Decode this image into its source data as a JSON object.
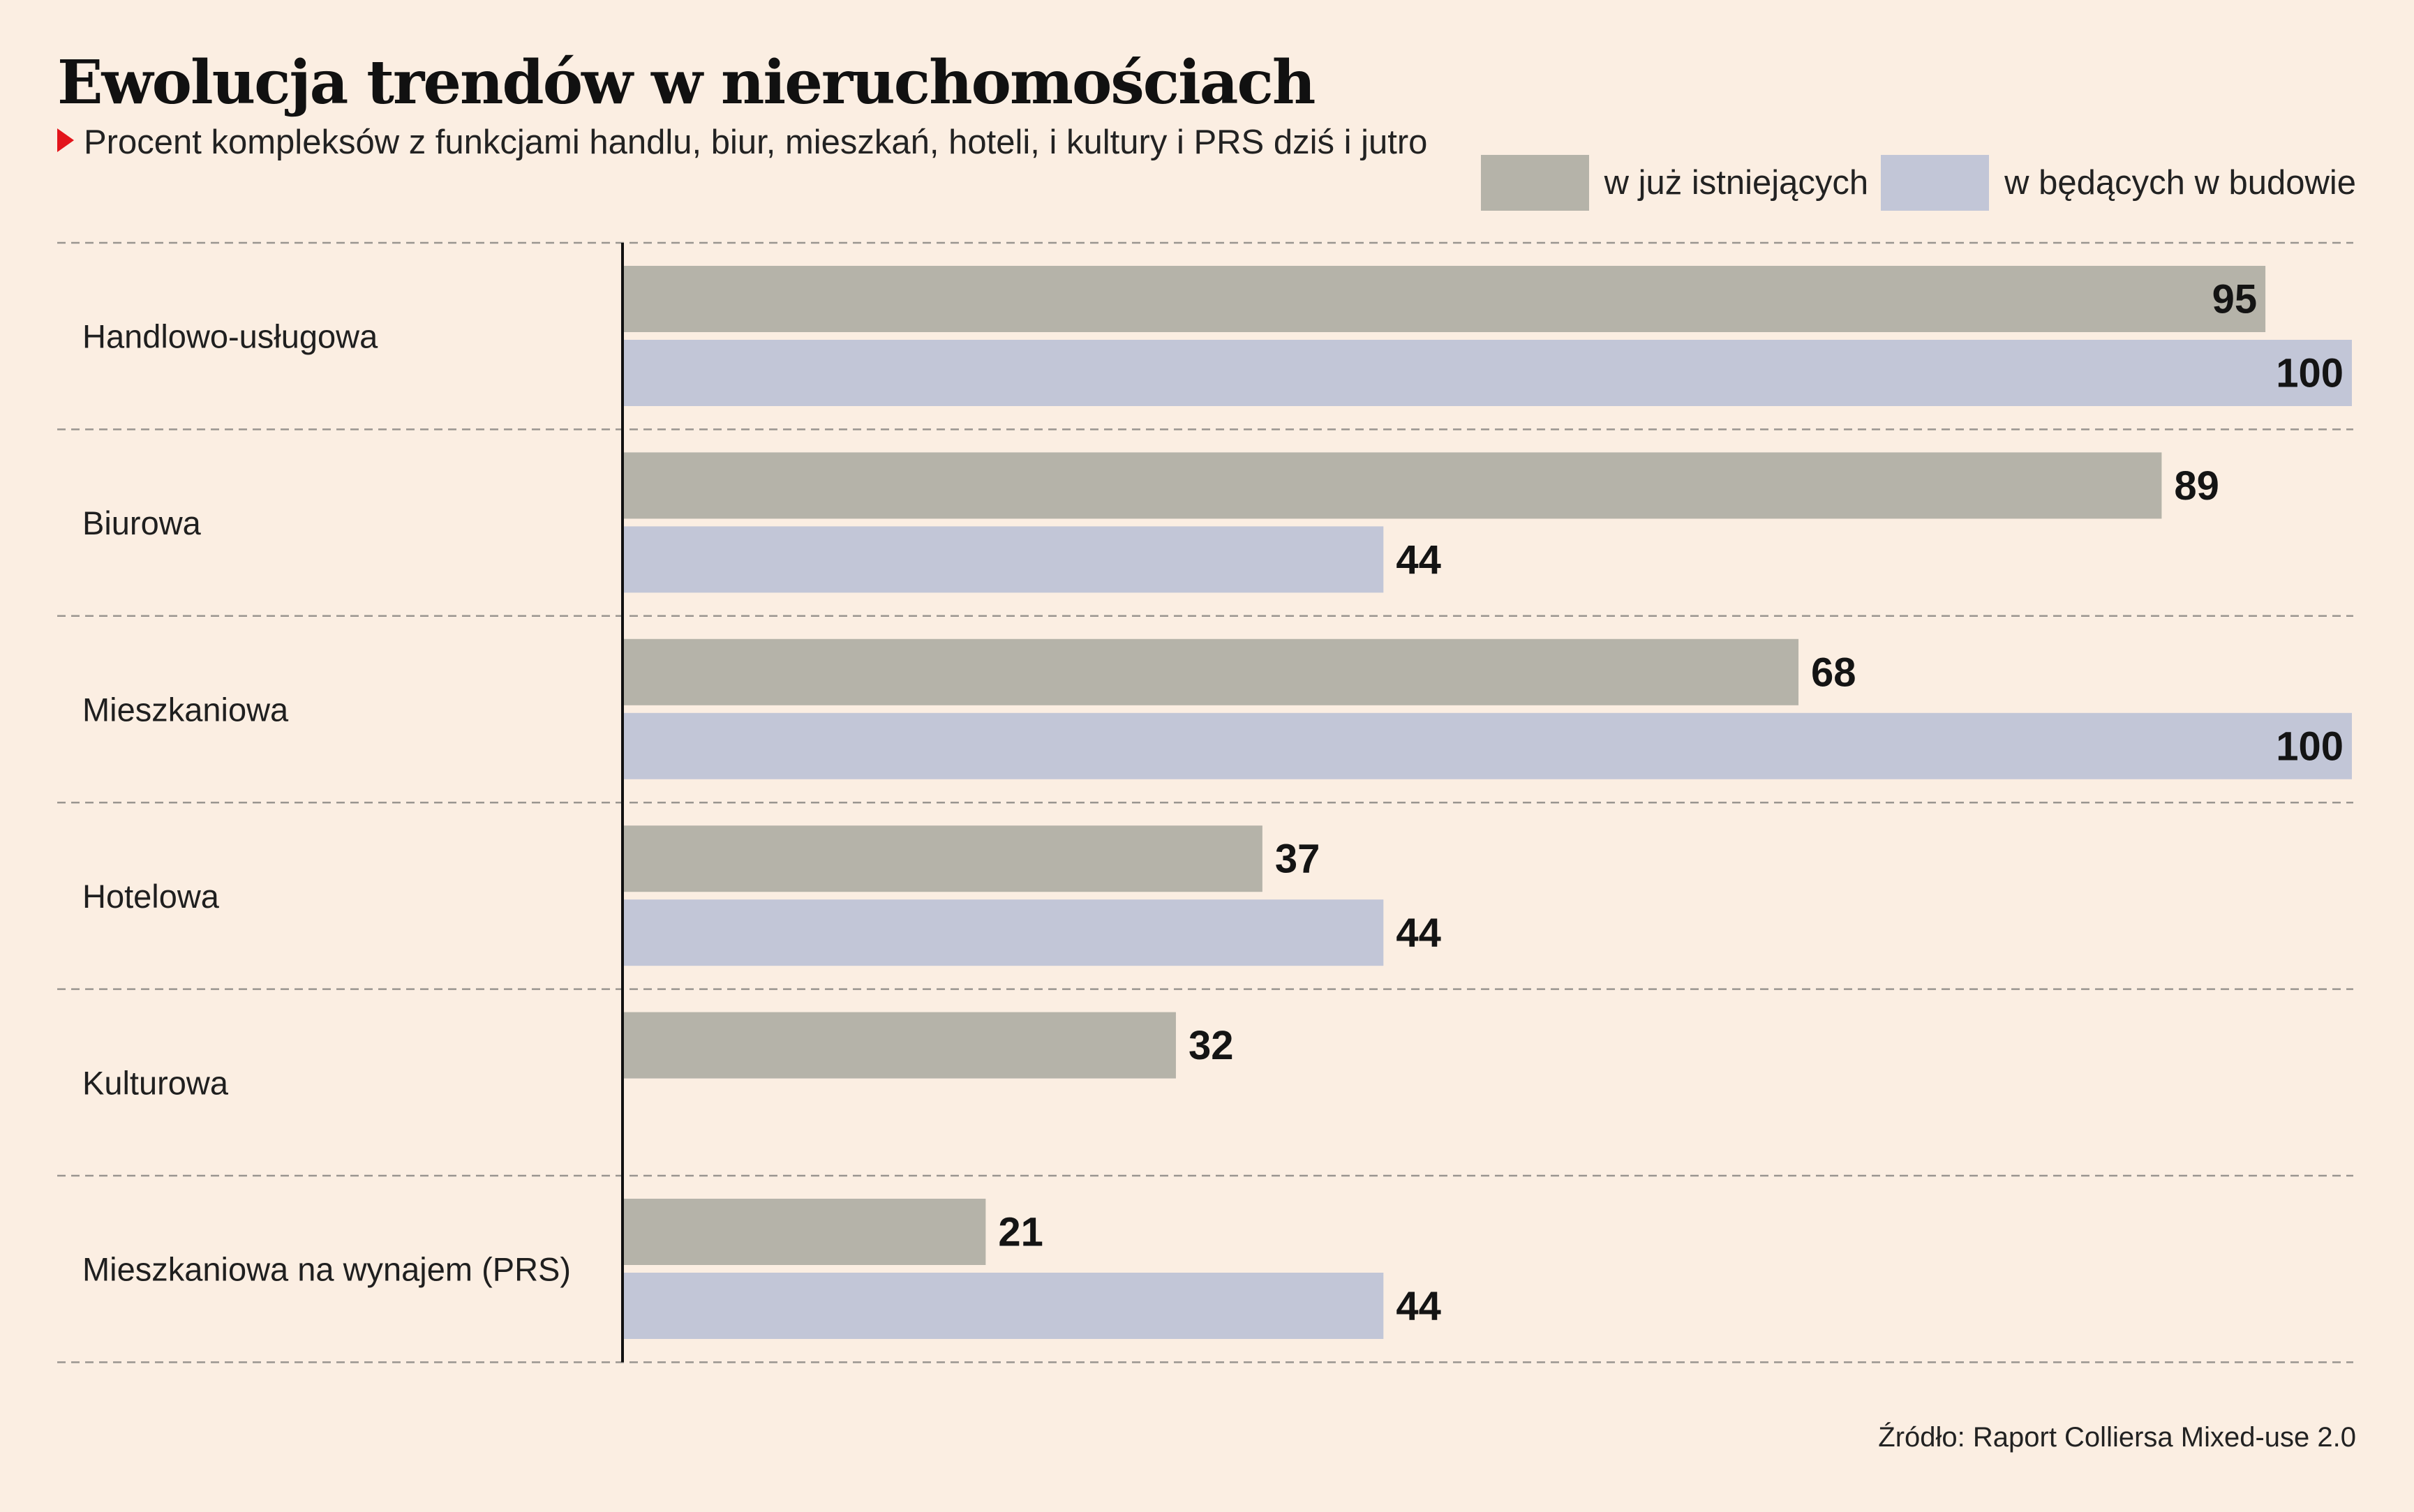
{
  "header": {
    "title": "Ewolucja trendów w nieruchomościach",
    "subtitle": "Procent kompleksów z funkcjami handlu, biur, mieszkań, hoteli, i kultury i PRS dziś i jutro"
  },
  "legend": [
    {
      "label": "w już istniejących",
      "color": "#b5b3a9"
    },
    {
      "label": "w będących w budowie",
      "color": "#c2c6d7"
    }
  ],
  "source": "Źródło: Raport Colliersa Mixed-use 2.0",
  "colors": {
    "background": "#fbeee2",
    "marker": "#e3141b",
    "axis": "#111111",
    "divider": "#9a9590"
  },
  "chart_data": {
    "type": "bar",
    "orientation": "horizontal",
    "categories": [
      "Handlowo-usługowa",
      "Biurowa",
      "Mieszkaniowa",
      "Hotelowa",
      "Kulturowa",
      "Mieszkaniowa na wynajem (PRS)"
    ],
    "series": [
      {
        "name": "w już istniejących",
        "values": [
          95,
          89,
          68,
          37,
          32,
          21
        ]
      },
      {
        "name": "w będących w budowie",
        "values": [
          100,
          44,
          100,
          44,
          null,
          44
        ]
      }
    ],
    "xlim": [
      0,
      100
    ],
    "unit": "%",
    "grid": false,
    "dividers": "dashed",
    "legend_position": "top-right",
    "data_labels": true
  }
}
